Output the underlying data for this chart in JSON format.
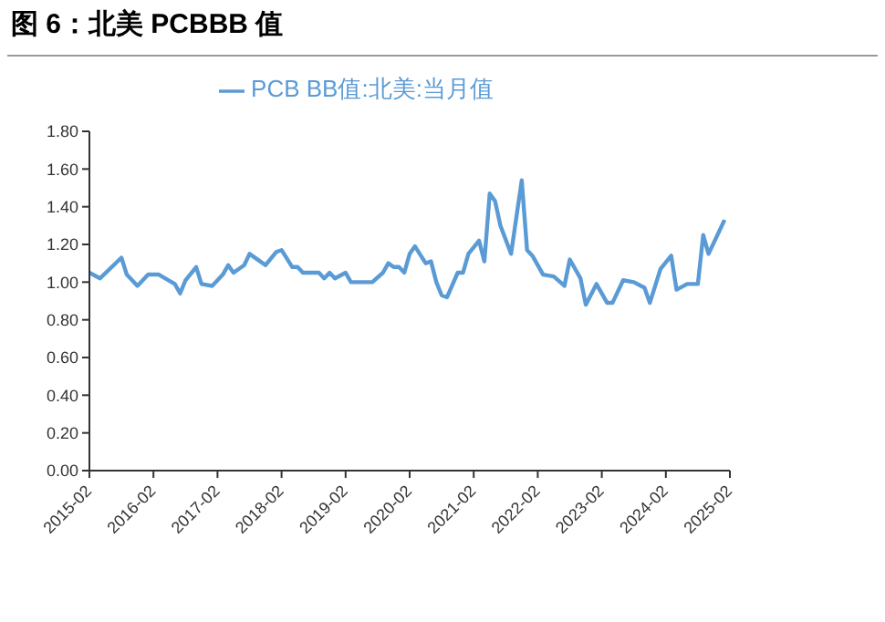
{
  "chart_data": {
    "type": "line",
    "title": "图 6：北美 PCBBB 值",
    "legend": "top",
    "grid": false,
    "marker": "none",
    "line_style": "solid",
    "x": [
      "2015-02",
      "2015-04",
      "2015-08",
      "2015-09",
      "2015-11",
      "2016-01",
      "2016-03",
      "2016-06",
      "2016-07",
      "2016-08",
      "2016-10",
      "2016-11",
      "2017-01",
      "2017-03",
      "2017-04",
      "2017-05",
      "2017-07",
      "2017-08",
      "2017-10",
      "2017-11",
      "2018-01",
      "2018-02",
      "2018-04",
      "2018-05",
      "2018-06",
      "2018-09",
      "2018-10",
      "2018-11",
      "2018-12",
      "2019-02",
      "2019-03",
      "2019-05",
      "2019-07",
      "2019-09",
      "2019-10",
      "2019-11",
      "2019-12",
      "2020-01",
      "2020-02",
      "2020-03",
      "2020-05",
      "2020-06",
      "2020-07",
      "2020-08",
      "2020-09",
      "2020-11",
      "2020-12",
      "2021-01",
      "2021-03",
      "2021-04",
      "2021-05",
      "2021-06",
      "2021-07",
      "2021-09",
      "2021-11",
      "2021-12",
      "2022-01",
      "2022-03",
      "2022-05",
      "2022-07",
      "2022-08",
      "2022-10",
      "2022-11",
      "2023-01",
      "2023-03",
      "2023-04",
      "2023-06",
      "2023-08",
      "2023-10",
      "2023-11",
      "2024-01",
      "2024-03",
      "2024-04",
      "2024-06",
      "2024-08",
      "2024-09",
      "2024-10",
      "2025-01"
    ],
    "series": [
      {
        "name": "PCB BB值:北美:当月值",
        "color": "#5b9bd5",
        "values": [
          1.05,
          1.02,
          1.13,
          1.04,
          0.98,
          1.04,
          1.04,
          0.99,
          0.94,
          1.01,
          1.08,
          0.99,
          0.98,
          1.04,
          1.09,
          1.05,
          1.09,
          1.15,
          1.11,
          1.09,
          1.16,
          1.17,
          1.08,
          1.08,
          1.05,
          1.05,
          1.02,
          1.05,
          1.02,
          1.05,
          1.0,
          1.0,
          1.0,
          1.05,
          1.1,
          1.08,
          1.08,
          1.05,
          1.15,
          1.19,
          1.1,
          1.11,
          1.0,
          0.93,
          0.92,
          1.05,
          1.05,
          1.15,
          1.22,
          1.11,
          1.47,
          1.43,
          1.3,
          1.15,
          1.54,
          1.17,
          1.14,
          1.04,
          1.03,
          0.98,
          1.12,
          1.02,
          0.88,
          0.99,
          0.89,
          0.89,
          1.01,
          1.0,
          0.97,
          0.89,
          1.07,
          1.14,
          0.96,
          0.99,
          0.99,
          1.25,
          1.15,
          1.33
        ]
      }
    ],
    "xlim": [
      "2015-02",
      "2025-02"
    ],
    "xticks": [
      "2015-02",
      "2016-02",
      "2017-02",
      "2018-02",
      "2019-02",
      "2020-02",
      "2021-02",
      "2022-02",
      "2023-02",
      "2024-02",
      "2025-02"
    ],
    "ylim": [
      0,
      1.8
    ],
    "yticks": [
      {
        "value": 0,
        "label": "0.00"
      },
      {
        "value": 0.2,
        "label": "0.20"
      },
      {
        "value": 0.4,
        "label": "0.40"
      },
      {
        "value": 0.6,
        "label": "0.60"
      },
      {
        "value": 0.8,
        "label": "0.80"
      },
      {
        "value": 1,
        "label": "1.00"
      },
      {
        "value": 1.2,
        "label": "1.20"
      },
      {
        "value": 1.4,
        "label": "1.40"
      },
      {
        "value": 1.6,
        "label": "1.60"
      },
      {
        "value": 1.8,
        "label": "1.80"
      }
    ]
  }
}
